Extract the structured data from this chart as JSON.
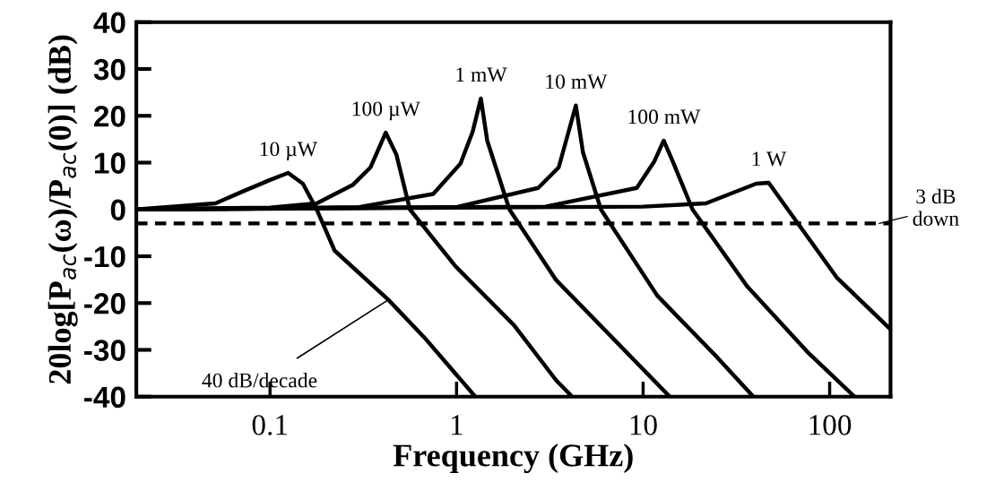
{
  "chart_data": {
    "type": "line",
    "xlabel": "Frequency (GHz)",
    "ylabel": "20log[P$_{ac}$(ω)/P$_{ac}$(0)] (dB)",
    "log": "x",
    "xlim": [
      0.0192,
      212
    ],
    "xticks": [
      0.1,
      1,
      10,
      100
    ],
    "ylim": [
      -40,
      40
    ],
    "yticks": [
      -40,
      -30,
      -20,
      -10,
      0,
      10,
      20,
      30,
      40
    ],
    "line_style": "solid",
    "marker": "none",
    "series": [
      {
        "name": "10 µW",
        "color": "#000000",
        "x": [
          0.0192,
          0.051,
          0.073,
          0.1,
          0.125,
          0.15,
          0.178,
          0.222,
          0.431,
          0.67,
          1.26
        ],
        "values": [
          0,
          1.3,
          4.0,
          6.3,
          7.8,
          5.5,
          0,
          -8.8,
          -19.3,
          -27.3,
          -40
        ]
      },
      {
        "name": "100 µW",
        "color": "#000000",
        "x": [
          0.0192,
          0.1,
          0.178,
          0.277,
          0.346,
          0.417,
          0.476,
          0.562,
          0.98,
          2.03,
          3.42,
          4.17
        ],
        "values": [
          0,
          0.4,
          1.3,
          5.2,
          9.0,
          16.4,
          11.7,
          0,
          -12.0,
          -24.7,
          -36.5,
          -40
        ]
      },
      {
        "name": "1 mW",
        "color": "#000000",
        "x": [
          0.0192,
          0.3,
          0.75,
          1.05,
          1.22,
          1.35,
          1.46,
          1.92,
          3.42,
          13.9
        ],
        "values": [
          0,
          0.5,
          3.3,
          9.8,
          16.6,
          23.7,
          14.7,
          0,
          -15.1,
          -40
        ]
      },
      {
        "name": "10 mW",
        "color": "#000000",
        "x": [
          0.0192,
          1,
          2.74,
          3.53,
          4.36,
          4.76,
          5.94,
          11.9,
          25.1,
          39
        ],
        "values": [
          0,
          0.5,
          4.6,
          9.0,
          22.2,
          12.2,
          0,
          -18.4,
          -31.7,
          -40
        ]
      },
      {
        "name": "100 mW",
        "color": "#000000",
        "x": [
          0.0192,
          3,
          9.25,
          11.5,
          12.9,
          14.4,
          18.4,
          36.1,
          75.8,
          136
        ],
        "values": [
          0,
          0.6,
          4.6,
          10.3,
          14.7,
          10.3,
          0,
          -16.4,
          -30.4,
          -40
        ]
      },
      {
        "name": "1 W",
        "color": "#000000",
        "x": [
          0.0192,
          1,
          10,
          21.7,
          40.4,
          47.1,
          67.9,
          109,
          212
        ],
        "values": [
          0,
          0.4,
          0.6,
          1.3,
          5.5,
          5.7,
          -3.1,
          -14.5,
          -25.6
        ]
      }
    ],
    "ref_lines": [
      {
        "axis": "y",
        "value": -3,
        "label": "3 dB\ndown",
        "line_style": "dashed",
        "color": "#000000"
      }
    ],
    "annotations": [
      {
        "text": "40 dB/decade",
        "x": 0.431,
        "y": -19.3
      }
    ]
  }
}
